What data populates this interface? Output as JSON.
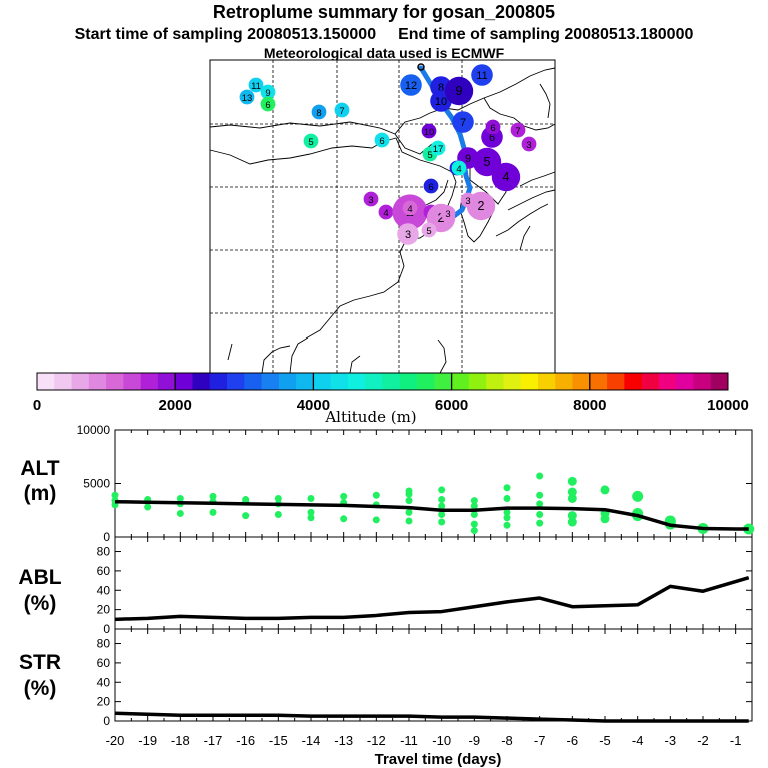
{
  "header": {
    "title": "Retroplume summary for gosan_200805",
    "start_label": "Start time of sampling 20080513.150000",
    "end_label": "End time of sampling 20080513.180000",
    "met_label": "Meteorological data used is ECMWF"
  },
  "colorbar": {
    "colors": [
      "#f8e0f8",
      "#f0c8f0",
      "#e8a8e8",
      "#e088e0",
      "#d868d8",
      "#c848d8",
      "#b020d8",
      "#9010d8",
      "#7000d8",
      "#3000c0",
      "#2020e0",
      "#2040f0",
      "#1860f0",
      "#1880f0",
      "#10a0f0",
      "#10b8f0",
      "#10d0f0",
      "#10e0e8",
      "#10f0e0",
      "#10f0c0",
      "#10f0a0",
      "#10f080",
      "#20f060",
      "#40f040",
      "#60f020",
      "#90f010",
      "#c0f010",
      "#e0f010",
      "#f8f000",
      "#f8d000",
      "#f8b000",
      "#f89000",
      "#f87000",
      "#f84000",
      "#f80000",
      "#f00040",
      "#f00080",
      "#e000a0",
      "#c80080",
      "#a00060"
    ],
    "tick_labels": [
      "0",
      "2000",
      "4000",
      "6000",
      "8000",
      "10000"
    ],
    "xlabel": "Altitude (m)"
  },
  "map": {
    "dots": [
      {
        "lbl": "13",
        "v": 3800,
        "n": 1
      },
      {
        "lbl": "11",
        "v": 4000,
        "n": 1
      },
      {
        "lbl": "9",
        "v": 4400,
        "n": 1
      },
      {
        "lbl": "6",
        "v": 5600,
        "n": 1
      },
      {
        "lbl": "8",
        "v": 3500,
        "n": 1
      },
      {
        "lbl": "7",
        "v": 4000,
        "n": 1
      },
      {
        "lbl": "5",
        "v": 5200,
        "n": 1
      },
      {
        "lbl": "6",
        "v": 4400,
        "n": 1
      },
      {
        "lbl": "12",
        "v": 3000,
        "n": 2
      },
      {
        "lbl": "8",
        "v": 2700,
        "n": 2
      },
      {
        "lbl": "10",
        "v": 2500,
        "n": 2
      },
      {
        "lbl": "9",
        "v": 2300,
        "n": 3
      },
      {
        "lbl": "11",
        "v": 2800,
        "n": 2
      },
      {
        "lbl": "7",
        "v": 2800,
        "n": 2
      },
      {
        "lbl": "6",
        "v": 2200,
        "n": 2
      },
      {
        "lbl": "6",
        "v": 1800,
        "n": 1
      },
      {
        "lbl": "5",
        "v": 5000,
        "n": 1
      },
      {
        "lbl": "17",
        "v": 4600,
        "n": 1
      },
      {
        "lbl": "5",
        "v": 2200,
        "n": 3
      },
      {
        "lbl": "4",
        "v": 2000,
        "n": 3
      },
      {
        "lbl": "10",
        "v": 2000,
        "n": 1
      },
      {
        "lbl": "9",
        "v": 2000,
        "n": 2
      },
      {
        "lbl": "7",
        "v": 1500,
        "n": 1
      },
      {
        "lbl": "3",
        "v": 1600,
        "n": 1
      },
      {
        "lbl": "6",
        "v": 2500,
        "n": 1
      },
      {
        "lbl": "4",
        "v": 2500,
        "n": 1
      },
      {
        "lbl": "3",
        "v": 1600,
        "n": 1
      },
      {
        "lbl": "4",
        "v": 1600,
        "n": 1
      },
      {
        "lbl": "2",
        "v": 1300,
        "n": 4
      },
      {
        "lbl": "4",
        "v": 1500,
        "n": 1
      },
      {
        "lbl": "2",
        "v": 800,
        "n": 3
      },
      {
        "lbl": "2",
        "v": 900,
        "n": 3
      },
      {
        "lbl": "3",
        "v": 700,
        "n": 2
      },
      {
        "lbl": "4",
        "v": 1000,
        "n": 1
      },
      {
        "lbl": "3",
        "v": 800,
        "n": 1
      },
      {
        "lbl": "5",
        "v": 700,
        "n": 1
      },
      {
        "lbl": "3",
        "v": 800,
        "n": 1
      },
      {
        "lbl": "4",
        "v": 4600,
        "n": 1
      }
    ]
  },
  "chart_data": {
    "type": "line",
    "x": [
      -20,
      -19,
      -18,
      -17,
      -16,
      -15,
      -14,
      -13,
      -12,
      -11,
      -10,
      -9,
      -8,
      -7,
      -6,
      -5,
      -4,
      -3,
      -2,
      -1
    ],
    "xlabel": "Travel time (days)",
    "xticks": [
      "-20",
      "-19",
      "-18",
      "-17",
      "-16",
      "-15",
      "-14",
      "-13",
      "-12",
      "-11",
      "-10",
      "-9",
      "-8",
      "-7",
      "-6",
      "-5",
      "-4",
      "-3",
      "-2",
      "-1"
    ],
    "xlim": [
      -20,
      -0.5
    ],
    "panels": [
      {
        "name": "ALT",
        "label_line1": "ALT",
        "label_line2": "(m)",
        "ylim": [
          0,
          10000
        ],
        "yticks": [
          "0",
          "5000",
          "10000"
        ],
        "line": {
          "x": [
            -20,
            -19,
            -18,
            -17,
            -16,
            -15,
            -14,
            -13,
            -12,
            -11,
            -10,
            -9,
            -8,
            -7,
            -6,
            -5,
            -4,
            -3,
            -2,
            -1,
            -0.6
          ],
          "y": [
            3300,
            3250,
            3200,
            3150,
            3100,
            3050,
            3000,
            2950,
            2850,
            2750,
            2500,
            2500,
            2700,
            2700,
            2650,
            2550,
            2000,
            1100,
            800,
            750,
            750
          ]
        },
        "scatter": [
          {
            "x": -20,
            "y": [
              3000,
              3400,
              3900
            ]
          },
          {
            "x": -19,
            "y": [
              2800,
              3300,
              3500
            ]
          },
          {
            "x": -18,
            "y": [
              2200,
              3100,
              3600
            ]
          },
          {
            "x": -17,
            "y": [
              2300,
              3300,
              3800
            ]
          },
          {
            "x": -16,
            "y": [
              2000,
              3300,
              3500
            ]
          },
          {
            "x": -15,
            "y": [
              2100,
              3100,
              3600
            ]
          },
          {
            "x": -14,
            "y": [
              1800,
              2300,
              3600
            ]
          },
          {
            "x": -13,
            "y": [
              1700,
              3200,
              3800
            ]
          },
          {
            "x": -12,
            "y": [
              1600,
              3000,
              3900
            ]
          },
          {
            "x": -11,
            "y": [
              1500,
              2300,
              3400,
              4000,
              4300
            ]
          },
          {
            "x": -10,
            "y": [
              1400,
              2100,
              2900,
              3500,
              4400
            ]
          },
          {
            "x": -9,
            "y": [
              600,
              1200,
              2100,
              2900,
              3400
            ]
          },
          {
            "x": -8,
            "y": [
              1100,
              1800,
              2300,
              3600,
              4600
            ]
          },
          {
            "x": -7,
            "y": [
              1300,
              2100,
              3100,
              3900,
              5700
            ]
          },
          {
            "x": -6,
            "y": [
              1400,
              2000,
              3600,
              4200,
              5200
            ]
          },
          {
            "x": -5,
            "y": [
              1700,
              2200,
              4400
            ]
          },
          {
            "x": -4,
            "y": [
              2000,
              2200,
              3800
            ]
          },
          {
            "x": -3,
            "y": [
              1200,
              1500
            ]
          },
          {
            "x": -2,
            "y": [
              800
            ]
          },
          {
            "x": -0.6,
            "y": [
              750
            ]
          }
        ]
      },
      {
        "name": "ABL",
        "label_line1": "ABL",
        "label_line2": "(%)",
        "ylim": [
          0,
          95
        ],
        "yticks": [
          "0",
          "20",
          "40",
          "60",
          "80"
        ],
        "line": {
          "x": [
            -20,
            -19,
            -18,
            -17,
            -16,
            -15,
            -14,
            -13,
            -12,
            -11,
            -10,
            -9,
            -8,
            -7,
            -6,
            -5,
            -4,
            -3,
            -2,
            -1,
            -0.6
          ],
          "y": [
            10,
            11,
            13,
            12,
            11,
            11,
            12,
            12,
            14,
            17,
            18,
            23,
            28,
            32,
            23,
            24,
            25,
            44,
            39,
            49,
            53
          ]
        }
      },
      {
        "name": "STR",
        "label_line1": "STR",
        "label_line2": "(%)",
        "ylim": [
          0,
          95
        ],
        "yticks": [
          "0",
          "20",
          "40",
          "60",
          "80"
        ],
        "line": {
          "x": [
            -20,
            -19,
            -18,
            -17,
            -16,
            -15,
            -14,
            -13,
            -12,
            -11,
            -10,
            -9,
            -8,
            -7,
            -6,
            -5,
            -4,
            -3,
            -2,
            -1,
            -0.6
          ],
          "y": [
            8,
            7,
            6,
            6,
            6,
            6,
            5,
            5,
            5,
            5,
            4,
            4,
            3,
            2,
            1,
            0,
            0,
            0,
            0,
            0,
            0
          ]
        }
      }
    ]
  }
}
